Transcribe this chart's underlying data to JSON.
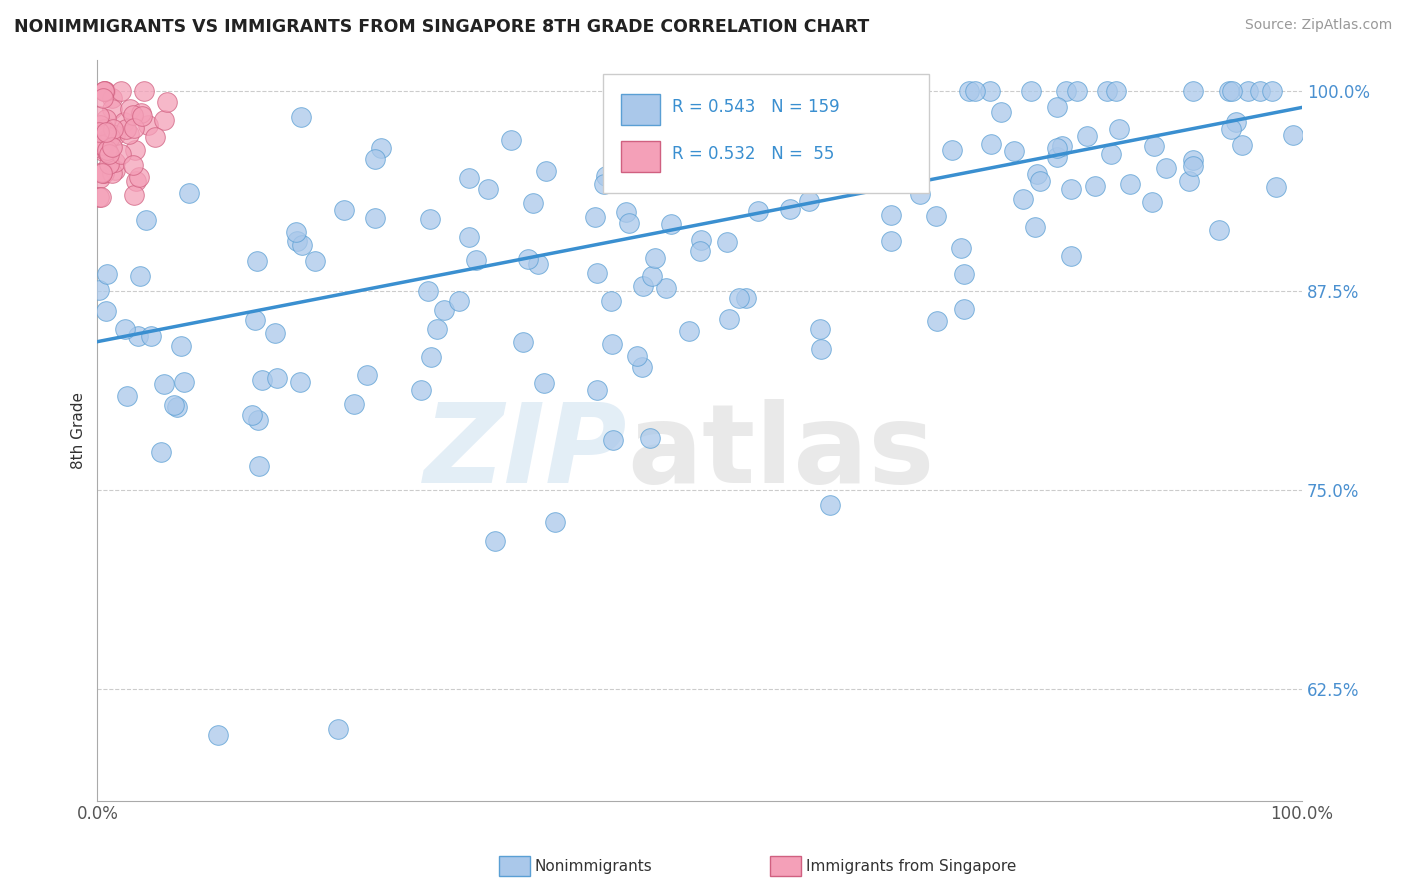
{
  "title": "NONIMMIGRANTS VS IMMIGRANTS FROM SINGAPORE 8TH GRADE CORRELATION CHART",
  "source": "Source: ZipAtlas.com",
  "ylabel": "8th Grade",
  "xlim": [
    0.0,
    1.0
  ],
  "ylim": [
    0.555,
    1.02
  ],
  "yticks": [
    0.625,
    0.75,
    0.875,
    1.0
  ],
  "ytick_labels": [
    "62.5%",
    "75.0%",
    "87.5%",
    "100.0%"
  ],
  "legend_r_blue": "0.543",
  "legend_n_blue": "159",
  "legend_r_pink": "0.532",
  "legend_n_pink": " 55",
  "blue_color": "#aac8ea",
  "blue_edge": "#5a9fd4",
  "pink_color": "#f4a0b8",
  "pink_edge": "#d06080",
  "trend_color": "#3a8fd0",
  "grid_color": "#cccccc",
  "title_color": "#222222",
  "source_color": "#999999",
  "tick_color_y": "#4a90d0",
  "tick_color_x": "#555555"
}
